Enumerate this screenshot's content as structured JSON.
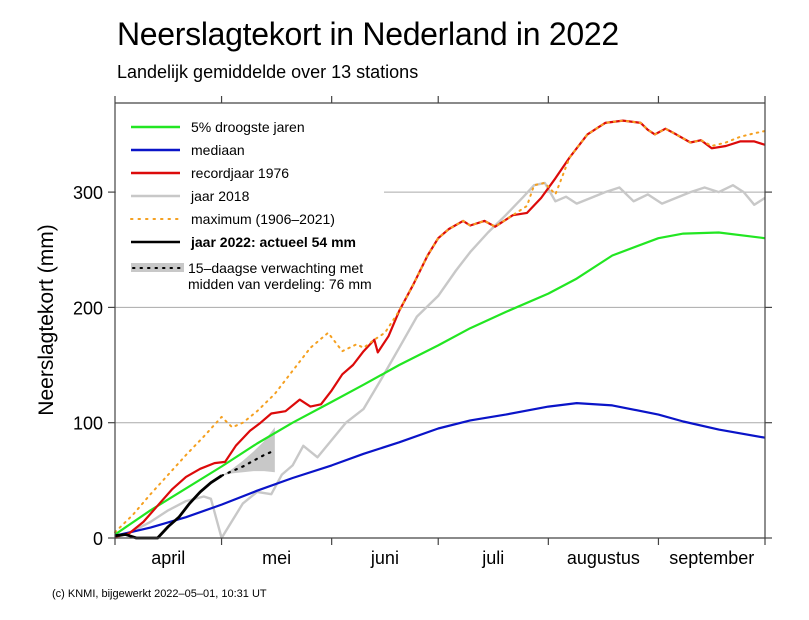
{
  "header": {
    "title": "Neerslagtekort in Nederland in 2022",
    "subtitle": "Landelijk gemiddelde over 13 stations"
  },
  "footer": "(c) KNMI, bijgewerkt 2022–05–01, 10:31 UT",
  "chart_data": {
    "type": "line",
    "title": "Neerslagtekort in Nederland in 2022",
    "subtitle": "Landelijk gemiddelde over 13 stations",
    "xlabel": "",
    "ylabel": "Neerslagtekort (mm)",
    "x_unit": "days since 1 April",
    "xlim": [
      0,
      183
    ],
    "ylim": [
      0,
      365
    ],
    "yticks": [
      0,
      100,
      200,
      300
    ],
    "xticks": [
      0,
      30,
      61,
      91,
      122,
      153,
      183
    ],
    "month_labels": [
      {
        "label": "april",
        "center": 15
      },
      {
        "label": "mei",
        "center": 45.5
      },
      {
        "label": "juni",
        "center": 76
      },
      {
        "label": "juli",
        "center": 106.5
      },
      {
        "label": "augustus",
        "center": 137.5
      },
      {
        "label": "september",
        "center": 168
      }
    ],
    "gridlines_y": [
      100,
      200,
      300
    ],
    "legend_position": "top-left",
    "colors": {
      "p5": "#22e622",
      "median": "#0a14c8",
      "record1976": "#dc0a0a",
      "y2018": "#c8c8c8",
      "maximum": "#f5a020",
      "y2022": "#000000",
      "forecast_band": "#c8c8c8"
    },
    "series": [
      {
        "key": "p5",
        "name": "5% droogste jaren",
        "style": "solid",
        "x": [
          0,
          10,
          20,
          30,
          40,
          50,
          61,
          70,
          80,
          91,
          100,
          110,
          122,
          130,
          140,
          153,
          160,
          170,
          183
        ],
        "y": [
          3,
          24,
          43,
          62,
          82,
          100,
          118,
          133,
          150,
          167,
          182,
          196,
          212,
          225,
          245,
          260,
          264,
          265,
          260
        ]
      },
      {
        "key": "median",
        "name": "mediaan",
        "style": "solid",
        "x": [
          0,
          10,
          20,
          30,
          40,
          50,
          61,
          70,
          80,
          91,
          100,
          110,
          122,
          130,
          140,
          153,
          160,
          170,
          183
        ],
        "y": [
          2,
          9,
          18,
          29,
          41,
          52,
          63,
          73,
          83,
          95,
          102,
          107,
          114,
          117,
          115,
          107,
          101,
          94,
          87
        ]
      },
      {
        "key": "record1976",
        "name": "recordjaar 1976",
        "style": "solid",
        "x": [
          0,
          4,
          8,
          12,
          16,
          20,
          24,
          28,
          31,
          34,
          38,
          41,
          44,
          48,
          52,
          55,
          58,
          61,
          64,
          67,
          70,
          73,
          74,
          77,
          80,
          84,
          88,
          91,
          94,
          98,
          100,
          104,
          107,
          112,
          116,
          120,
          124,
          128,
          133,
          138,
          143,
          148,
          150,
          152,
          155,
          158,
          162,
          165,
          168,
          172,
          176,
          180,
          183
        ],
        "y": [
          1,
          4,
          14,
          28,
          42,
          53,
          60,
          65,
          66,
          80,
          93,
          100,
          108,
          110,
          120,
          114,
          116,
          128,
          142,
          150,
          162,
          172,
          161,
          175,
          197,
          220,
          245,
          260,
          268,
          275,
          271,
          275,
          270,
          280,
          282,
          295,
          312,
          330,
          350,
          360,
          362,
          360,
          354,
          350,
          355,
          350,
          343,
          345,
          338,
          340,
          344,
          344,
          341
        ]
      },
      {
        "key": "y2018",
        "name": "jaar 2018",
        "style": "solid",
        "x": [
          0,
          5,
          10,
          15,
          20,
          25,
          27,
          30,
          33,
          36,
          40,
          44,
          47,
          50,
          53,
          57,
          61,
          65,
          70,
          75,
          80,
          85,
          91,
          96,
          100,
          105,
          110,
          115,
          118,
          121,
          124,
          127,
          130,
          134,
          138,
          142,
          146,
          150,
          154,
          158,
          162,
          166,
          170,
          174,
          177,
          180,
          183
        ],
        "y": [
          0,
          6,
          14,
          24,
          32,
          36,
          34,
          0,
          15,
          30,
          40,
          38,
          55,
          63,
          80,
          70,
          85,
          100,
          112,
          138,
          165,
          192,
          210,
          232,
          248,
          265,
          280,
          296,
          306,
          308,
          292,
          296,
          290,
          295,
          300,
          304,
          292,
          298,
          290,
          295,
          300,
          304,
          300,
          306,
          300,
          289,
          295
        ]
      },
      {
        "key": "maximum",
        "name": "maximum (1906–2021)",
        "style": "dotted",
        "x": [
          0,
          5,
          10,
          15,
          20,
          25,
          30,
          33,
          36,
          40,
          45,
          50,
          55,
          60,
          64,
          68,
          70,
          73,
          76,
          80,
          84,
          88,
          91,
          94,
          98,
          100,
          104,
          107,
          112,
          116,
          118,
          121,
          124,
          128,
          133,
          138,
          143,
          148,
          150,
          152,
          155,
          158,
          162,
          165,
          168,
          172,
          176,
          180,
          183
        ],
        "y": [
          5,
          20,
          38,
          55,
          72,
          88,
          105,
          96,
          100,
          110,
          125,
          145,
          165,
          178,
          162,
          168,
          165,
          172,
          178,
          197,
          220,
          245,
          260,
          268,
          275,
          271,
          275,
          270,
          280,
          288,
          306,
          308,
          298,
          330,
          350,
          360,
          362,
          360,
          354,
          350,
          355,
          350,
          343,
          345,
          340,
          343,
          348,
          351,
          353
        ]
      },
      {
        "key": "y2022",
        "name": "jaar 2022: actueel 54 mm",
        "style": "solid-bold",
        "x": [
          0,
          3,
          6,
          9,
          12,
          15,
          18,
          21,
          24,
          27,
          30
        ],
        "y": [
          2,
          3,
          0,
          0,
          0,
          10,
          18,
          30,
          40,
          48,
          54
        ]
      }
    ],
    "forecast": {
      "name": "15–daagse verwachting met midden van verdeling: 76 mm",
      "x": [
        30,
        33,
        36,
        39,
        42,
        45
      ],
      "mid": [
        54,
        58,
        62,
        67,
        72,
        76
      ],
      "low": [
        54,
        56,
        57,
        58,
        58,
        57
      ],
      "high": [
        54,
        60,
        67,
        75,
        84,
        96
      ]
    },
    "legend": [
      {
        "key": "p5",
        "label": "5% droogste jaren"
      },
      {
        "key": "median",
        "label": "mediaan"
      },
      {
        "key": "record1976",
        "label": "recordjaar 1976"
      },
      {
        "key": "y2018",
        "label": "jaar 2018"
      },
      {
        "key": "maximum",
        "label": "maximum (1906–2021)"
      },
      {
        "key": "y2022",
        "label": "jaar 2022: actueel 54 mm",
        "bold": true
      },
      {
        "key": "forecast",
        "label": "15–daagse verwachting met",
        "label2": "midden van verdeling: 76 mm"
      }
    ]
  }
}
